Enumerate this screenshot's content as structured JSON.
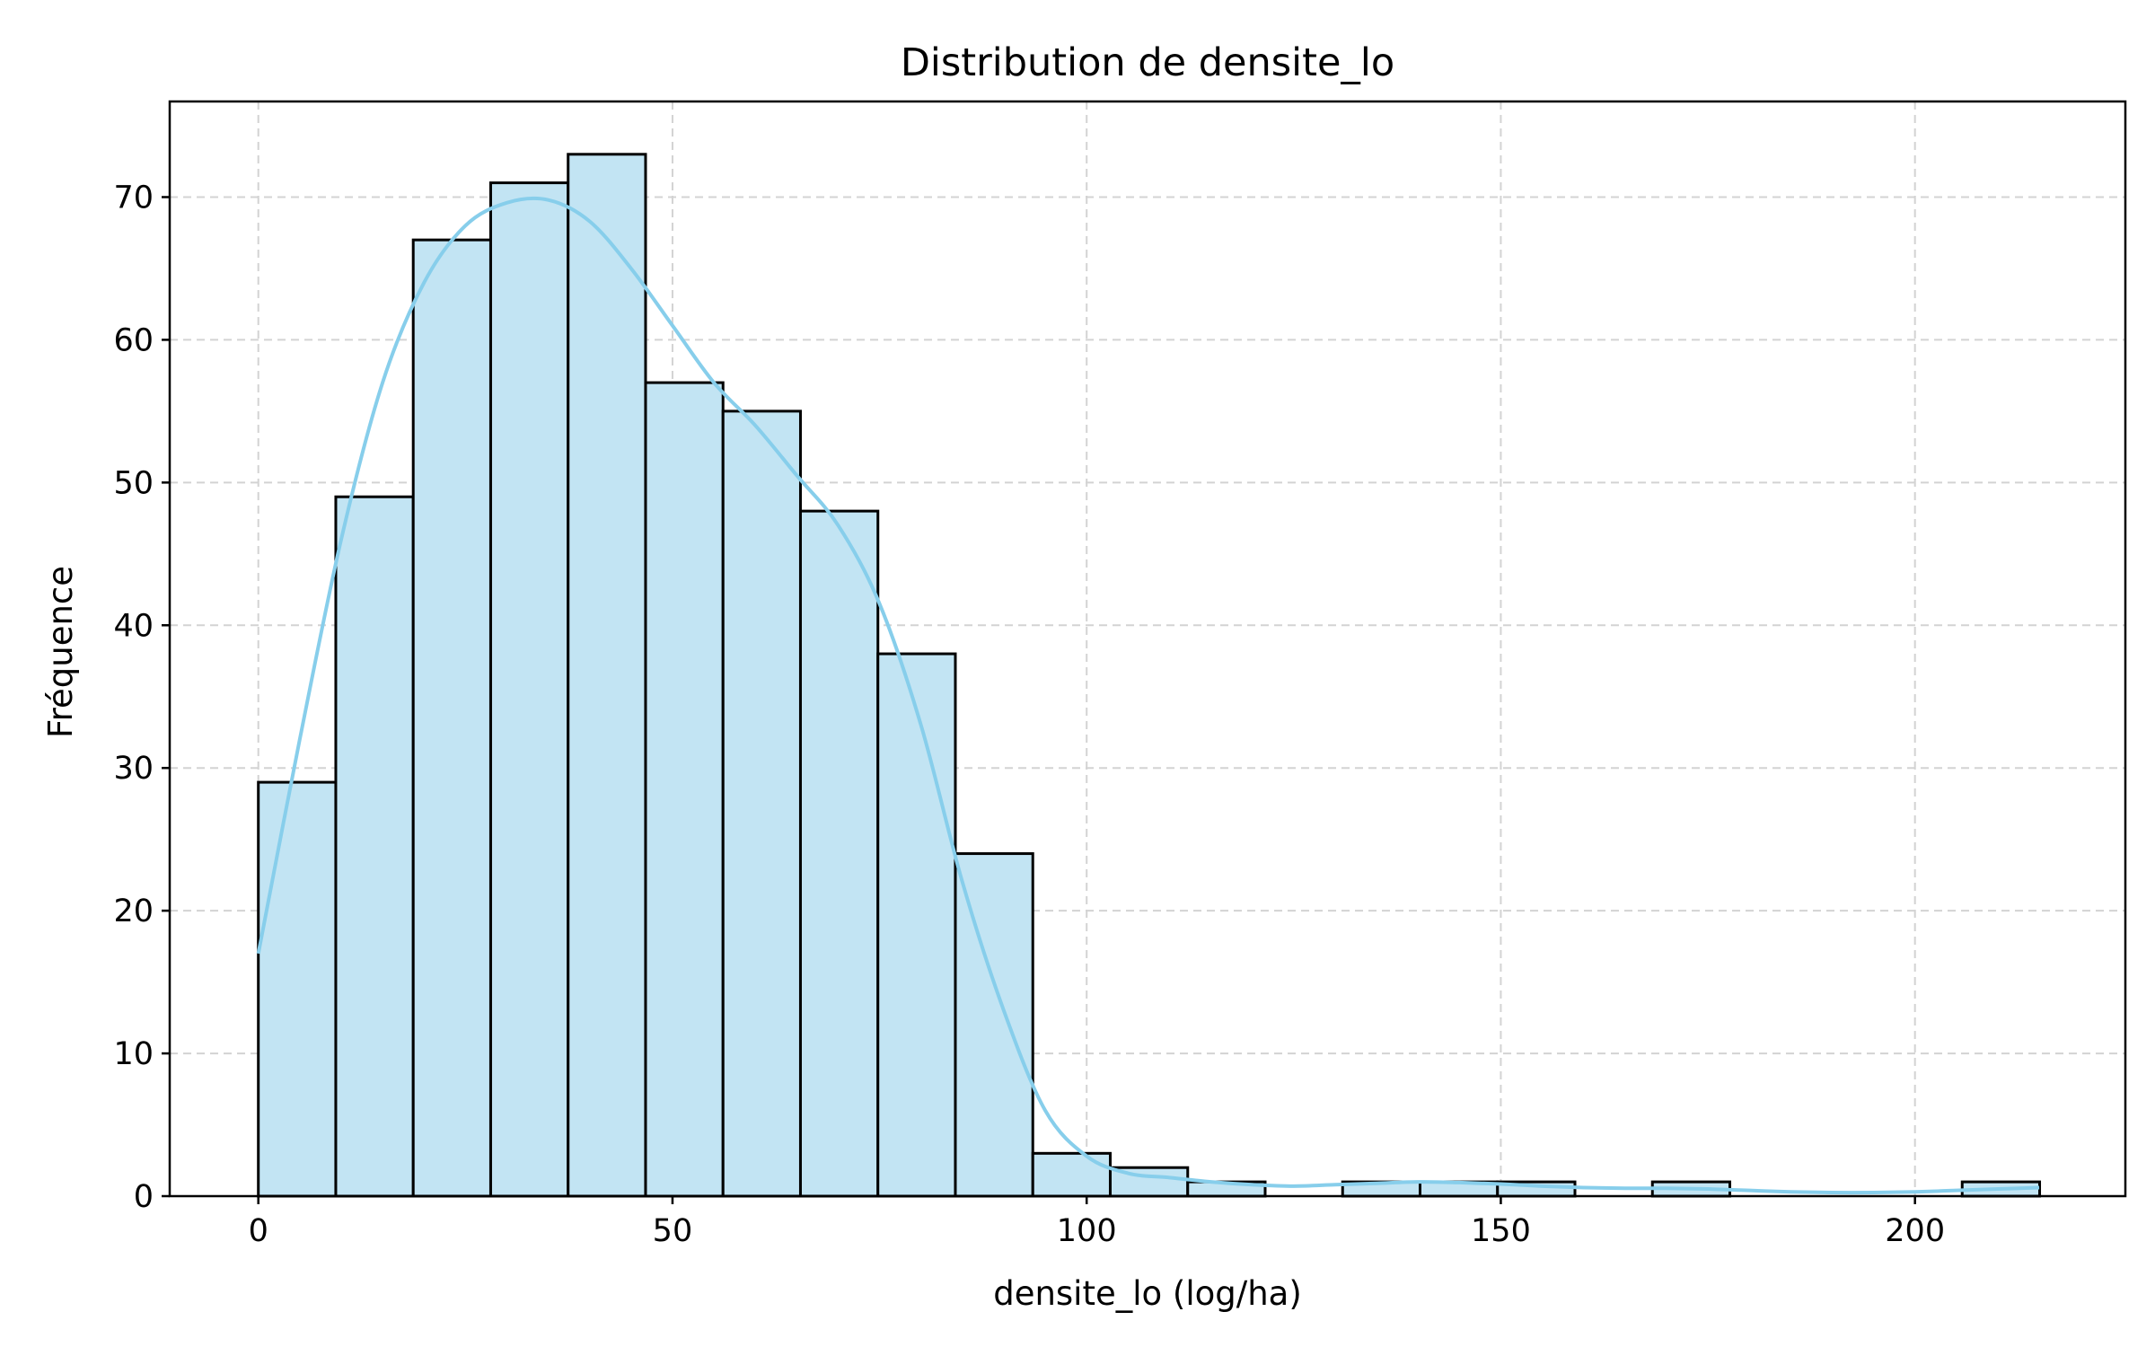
{
  "chart_data": {
    "type": "bar",
    "title": "Distribution de densite_lo",
    "xlabel": "densite_lo (log/ha)",
    "ylabel": "Fréquence",
    "xlim": [
      -10.7,
      225.4
    ],
    "ylim": [
      0,
      76.7
    ],
    "xticks": [
      0,
      50,
      100,
      150,
      200
    ],
    "yticks": [
      0,
      10,
      20,
      30,
      40,
      50,
      60,
      70
    ],
    "grid": true,
    "bins": {
      "edges": [
        0,
        9.35,
        18.7,
        28.05,
        37.4,
        46.75,
        56.1,
        65.45,
        74.8,
        84.15,
        93.5,
        102.85,
        112.2,
        121.55,
        130.9,
        140.25,
        149.6,
        158.95,
        168.3,
        177.65,
        187.0,
        196.35,
        205.7,
        215.05
      ],
      "counts": [
        29,
        49,
        67,
        71,
        73,
        57,
        55,
        48,
        38,
        24,
        3,
        2,
        1,
        0,
        1,
        1,
        1,
        0,
        1,
        0,
        0,
        0,
        1
      ]
    },
    "kde": {
      "x": [
        0,
        5,
        10,
        15,
        20,
        25,
        30,
        35,
        40,
        45,
        50,
        55,
        60,
        65,
        70,
        75,
        80,
        85,
        90,
        95,
        100,
        105,
        110,
        115,
        120,
        125,
        130,
        135,
        140,
        145,
        150,
        155,
        160,
        165,
        170,
        175,
        180,
        185,
        190,
        195,
        200,
        205,
        210,
        215
      ],
      "y": [
        17,
        32,
        46,
        57,
        64,
        68,
        69.6,
        69.8,
        68.3,
        65,
        61,
        57,
        54,
        50.5,
        47,
        41.5,
        33,
        22,
        13,
        6,
        2.8,
        1.6,
        1.3,
        1.0,
        0.8,
        0.7,
        0.8,
        0.9,
        1.0,
        0.95,
        0.85,
        0.7,
        0.6,
        0.55,
        0.55,
        0.5,
        0.4,
        0.3,
        0.25,
        0.25,
        0.3,
        0.4,
        0.5,
        0.6
      ]
    },
    "colors": {
      "bar_fill": "#c2e4f3",
      "bar_edge": "#000000",
      "kde": "#87ceeb",
      "grid": "#d3d3d3"
    }
  }
}
